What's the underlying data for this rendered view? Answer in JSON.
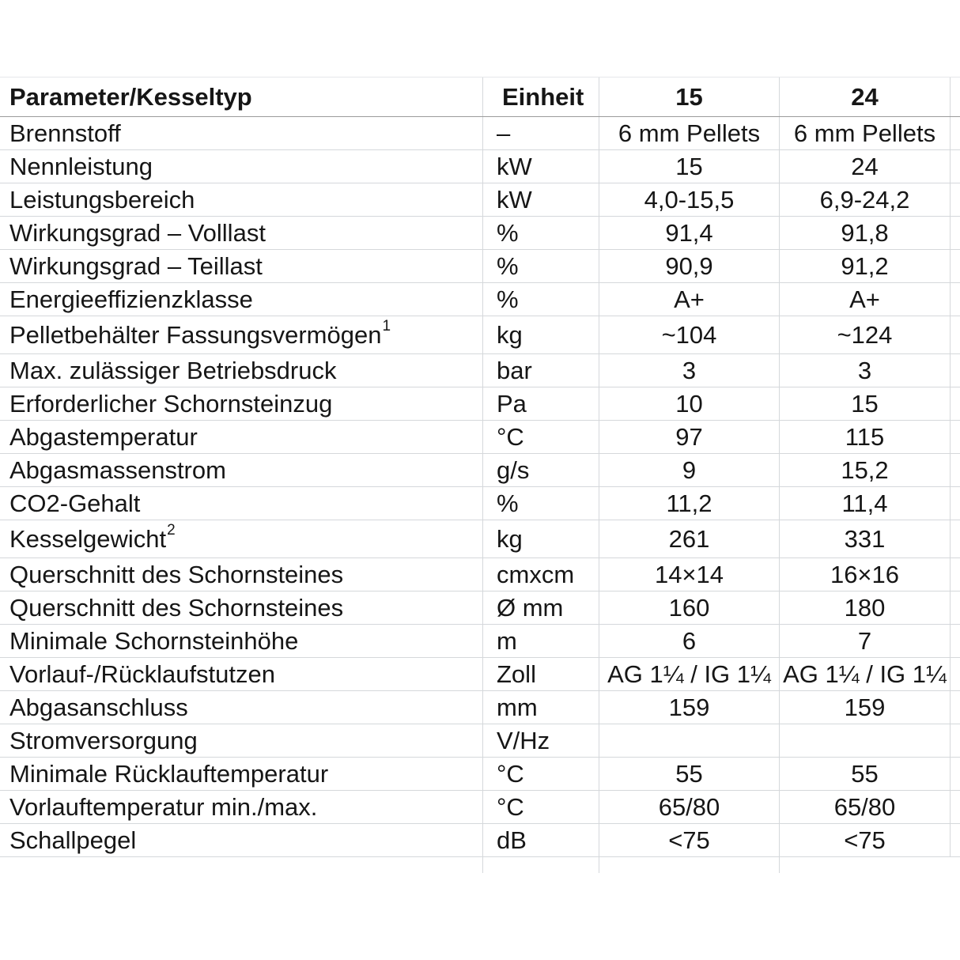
{
  "colors": {
    "background": "#ffffff",
    "text": "#161616",
    "grid_line": "#d5d8db",
    "header_rule": "#9b9b9b"
  },
  "table": {
    "header": {
      "param": "Parameter/Kesseltyp",
      "unit": "Einheit",
      "model15": "15",
      "model24": "24"
    },
    "rows": [
      {
        "param": "Brennstoff",
        "sup": "",
        "unit": "–",
        "v15": "6 mm Pellets",
        "v24": "6 mm Pellets"
      },
      {
        "param": "Nennleistung",
        "sup": "",
        "unit": "kW",
        "v15": "15",
        "v24": "24"
      },
      {
        "param": "Leistungsbereich",
        "sup": "",
        "unit": "kW",
        "v15": "4,0-15,5",
        "v24": "6,9-24,2"
      },
      {
        "param": "Wirkungsgrad – Volllast",
        "sup": "",
        "unit": "%",
        "v15": "91,4",
        "v24": "91,8"
      },
      {
        "param": "Wirkungsgrad – Teillast",
        "sup": "",
        "unit": "%",
        "v15": "90,9",
        "v24": "91,2"
      },
      {
        "param": "Energieeffizienzklasse",
        "sup": "",
        "unit": "%",
        "v15": "A+",
        "v24": "A+"
      },
      {
        "param": "Pelletbehälter Fassungsvermögen",
        "sup": "1",
        "unit": "kg",
        "v15": "~104",
        "v24": "~124"
      },
      {
        "param": "Max. zulässiger Betriebsdruck",
        "sup": "",
        "unit": "bar",
        "v15": "3",
        "v24": "3"
      },
      {
        "param": "Erforderlicher Schornsteinzug",
        "sup": "",
        "unit": "Pa",
        "v15": "10",
        "v24": "15"
      },
      {
        "param": "Abgastemperatur",
        "sup": "",
        "unit": "°C",
        "v15": "97",
        "v24": "115"
      },
      {
        "param": "Abgasmassenstrom",
        "sup": "",
        "unit": "g/s",
        "v15": "9",
        "v24": "15,2"
      },
      {
        "param": "CO2-Gehalt",
        "sup": "",
        "unit": "%",
        "v15": "11,2",
        "v24": "11,4"
      },
      {
        "param": "Kesselgewicht",
        "sup": "2",
        "unit": "kg",
        "v15": "261",
        "v24": "331"
      },
      {
        "param": "Querschnitt des Schornsteines",
        "sup": "",
        "unit": "cmxcm",
        "v15": "14×14",
        "v24": "16×16"
      },
      {
        "param": "Querschnitt des Schornsteines",
        "sup": "",
        "unit": "Ø mm",
        "v15": "160",
        "v24": "180"
      },
      {
        "param": "Minimale Schornsteinhöhe",
        "sup": "",
        "unit": "m",
        "v15": "6",
        "v24": "7"
      },
      {
        "param": "Vorlauf-/Rücklaufstutzen",
        "sup": "",
        "unit": "Zoll",
        "v15": "AG 1¼ / IG 1¼",
        "v24": "AG 1¼ / IG 1¼"
      },
      {
        "param": "Abgasanschluss",
        "sup": "",
        "unit": "mm",
        "v15": "159",
        "v24": "159"
      },
      {
        "param": "Stromversorgung",
        "sup": "",
        "unit": "V/Hz",
        "v15": "",
        "v24": ""
      },
      {
        "param": "Minimale Rücklauftemperatur",
        "sup": "",
        "unit": "°C",
        "v15": "55",
        "v24": "55"
      },
      {
        "param": "Vorlauftemperatur min./max.",
        "sup": "",
        "unit": "°C",
        "v15": "65/80",
        "v24": "65/80"
      },
      {
        "param": "Schallpegel",
        "sup": "",
        "unit": "dB",
        "v15": "<75",
        "v24": "<75"
      }
    ]
  }
}
